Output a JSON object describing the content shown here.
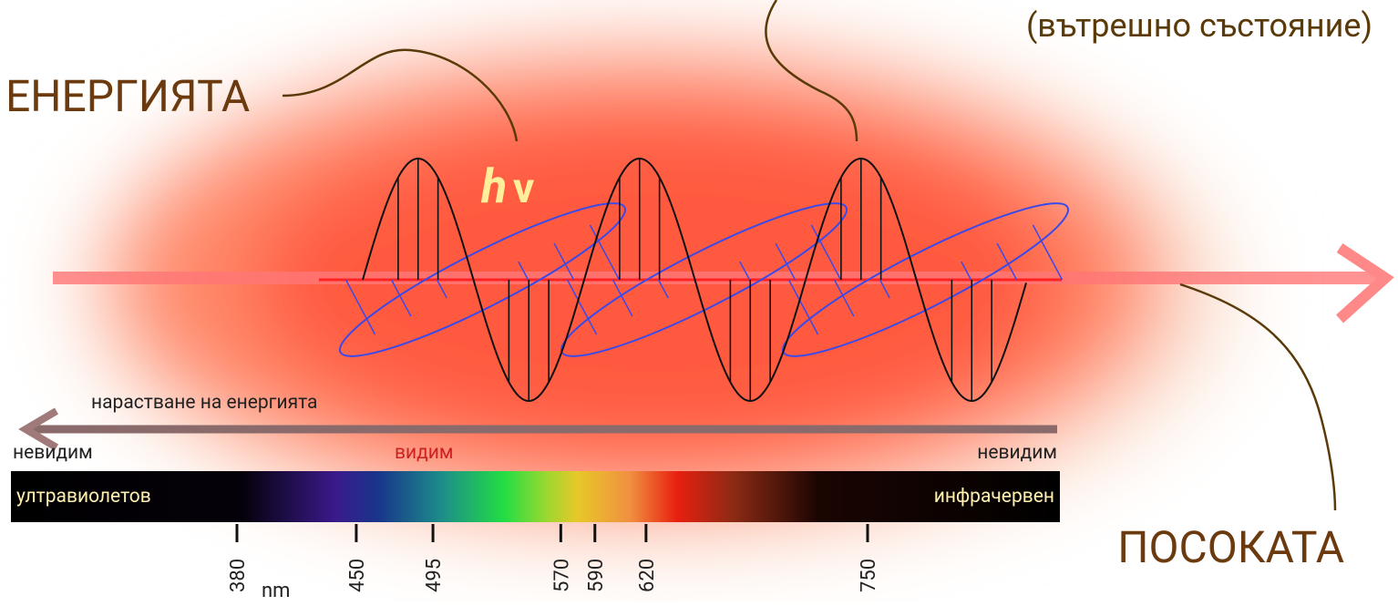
{
  "labels": {
    "state": "(вътрешно състояние)",
    "energy": "ЕНЕРГИЯТА",
    "h": "h",
    "nu": "v",
    "direction": "ПОСОКАТА",
    "increase": "нарастване на енергията",
    "invisible_left": "невидим",
    "visible": "видим",
    "invisible_right": "невидим",
    "uv": "ултравиолетов",
    "ir": "инфрачервен",
    "unit": "nm"
  },
  "wavelengths": [
    380,
    450,
    495,
    570,
    590,
    620,
    750
  ]
}
